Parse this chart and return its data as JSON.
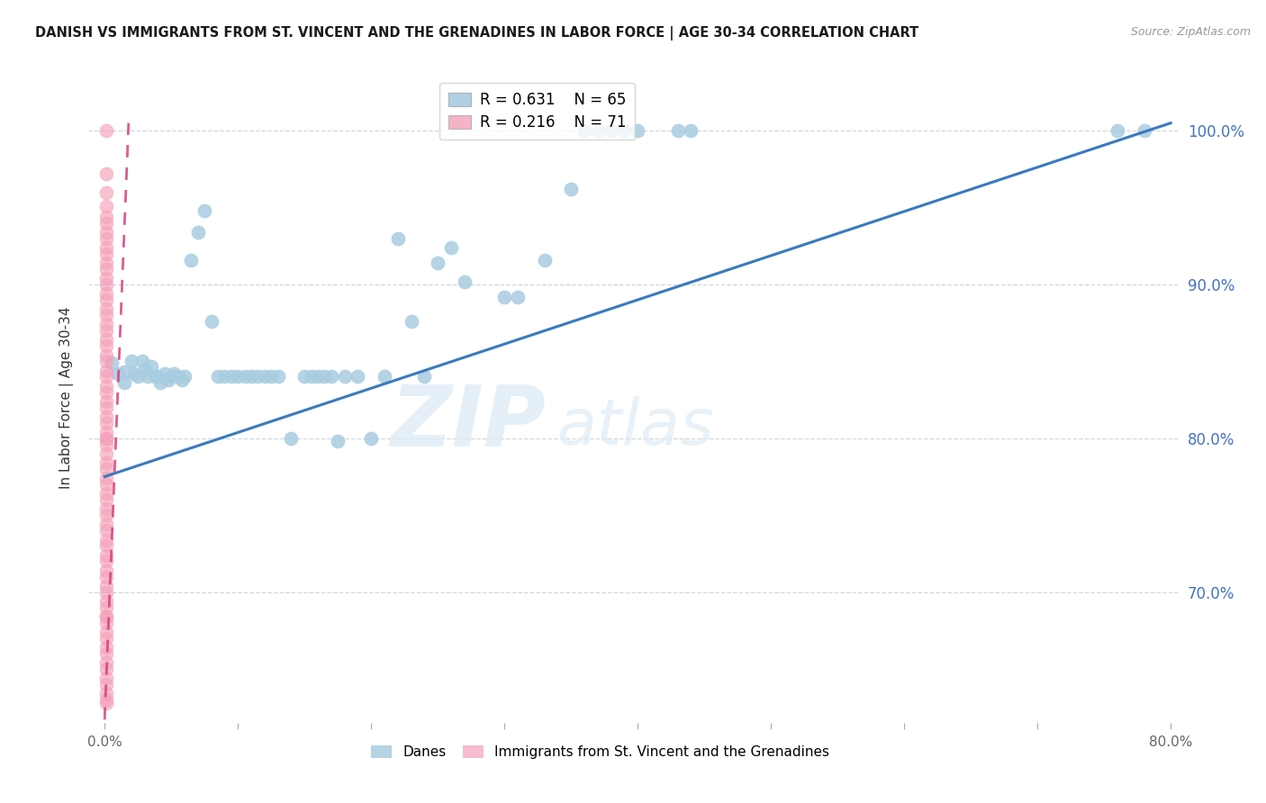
{
  "title": "DANISH VS IMMIGRANTS FROM ST. VINCENT AND THE GRENADINES IN LABOR FORCE | AGE 30-34 CORRELATION CHART",
  "source": "Source: ZipAtlas.com",
  "ylabel": "In Labor Force | Age 30-34",
  "xlim": [
    -0.012,
    0.805
  ],
  "ylim": [
    0.615,
    1.038
  ],
  "right_yticks": [
    0.7,
    0.8,
    0.9,
    1.0
  ],
  "right_yticklabels": [
    "70.0%",
    "80.0%",
    "90.0%",
    "100.0%"
  ],
  "xticks": [
    0.0,
    0.1,
    0.2,
    0.3,
    0.4,
    0.5,
    0.6,
    0.7,
    0.8
  ],
  "xticklabels": [
    "0.0%",
    "",
    "",
    "",
    "",
    "",
    "",
    "",
    "80.0%"
  ],
  "legend_blue_r": "R = 0.631",
  "legend_blue_n": "N = 65",
  "legend_pink_r": "R = 0.216",
  "legend_pink_n": "N = 71",
  "blue_dot_color": "#a8cce0",
  "pink_dot_color": "#f4a0b8",
  "trend_blue_color": "#3a7abf",
  "trend_pink_color": "#d44080",
  "grid_color": "#d0d8e0",
  "danes_x": [
    0.005,
    0.01,
    0.015,
    0.015,
    0.02,
    0.022,
    0.025,
    0.028,
    0.03,
    0.032,
    0.035,
    0.038,
    0.04,
    0.042,
    0.045,
    0.048,
    0.05,
    0.052,
    0.055,
    0.058,
    0.06,
    0.065,
    0.07,
    0.075,
    0.08,
    0.085,
    0.09,
    0.095,
    0.1,
    0.105,
    0.11,
    0.115,
    0.12,
    0.125,
    0.13,
    0.14,
    0.15,
    0.155,
    0.16,
    0.165,
    0.17,
    0.175,
    0.18,
    0.19,
    0.2,
    0.21,
    0.22,
    0.23,
    0.24,
    0.25,
    0.26,
    0.27,
    0.3,
    0.31,
    0.33,
    0.35,
    0.36,
    0.37,
    0.38,
    0.39,
    0.4,
    0.43,
    0.44,
    0.76,
    0.78
  ],
  "danes_y": [
    0.849,
    0.842,
    0.843,
    0.836,
    0.85,
    0.842,
    0.84,
    0.85,
    0.845,
    0.84,
    0.847,
    0.84,
    0.84,
    0.836,
    0.842,
    0.838,
    0.84,
    0.842,
    0.84,
    0.838,
    0.84,
    0.916,
    0.934,
    0.948,
    0.876,
    0.84,
    0.84,
    0.84,
    0.84,
    0.84,
    0.84,
    0.84,
    0.84,
    0.84,
    0.84,
    0.8,
    0.84,
    0.84,
    0.84,
    0.84,
    0.84,
    0.798,
    0.84,
    0.84,
    0.8,
    0.84,
    0.93,
    0.876,
    0.84,
    0.914,
    0.924,
    0.902,
    0.892,
    0.892,
    0.916,
    0.962,
    1.0,
    1.0,
    1.0,
    1.0,
    1.0,
    1.0,
    1.0,
    1.0,
    1.0
  ],
  "immigrants_x_vals": [
    0.001,
    0.001,
    0.001,
    0.001,
    0.001,
    0.001,
    0.001,
    0.001,
    0.001,
    0.001,
    0.001,
    0.001,
    0.001,
    0.001,
    0.001,
    0.001,
    0.001,
    0.001,
    0.001,
    0.001,
    0.001,
    0.001,
    0.001,
    0.001,
    0.001,
    0.001,
    0.001,
    0.001,
    0.001,
    0.001,
    0.001,
    0.001,
    0.001,
    0.001,
    0.001,
    0.001,
    0.001,
    0.001,
    0.001,
    0.001,
    0.001,
    0.001,
    0.001,
    0.001,
    0.001,
    0.001,
    0.001,
    0.001,
    0.001,
    0.001,
    0.001,
    0.001,
    0.001,
    0.001,
    0.001,
    0.001,
    0.001,
    0.001,
    0.001,
    0.001,
    0.001,
    0.001,
    0.001,
    0.001,
    0.001,
    0.001,
    0.001,
    0.001,
    0.001,
    0.001,
    0.001
  ],
  "immigrants_y_vals": [
    1.0,
    0.972,
    0.96,
    0.951,
    0.944,
    0.94,
    0.934,
    0.93,
    0.924,
    0.92,
    0.914,
    0.91,
    0.904,
    0.9,
    0.894,
    0.89,
    0.884,
    0.88,
    0.874,
    0.87,
    0.864,
    0.86,
    0.854,
    0.85,
    0.844,
    0.84,
    0.834,
    0.83,
    0.824,
    0.82,
    0.814,
    0.81,
    0.804,
    0.8,
    0.8,
    0.796,
    0.79,
    0.784,
    0.78,
    0.774,
    0.77,
    0.764,
    0.76,
    0.754,
    0.75,
    0.744,
    0.74,
    0.734,
    0.73,
    0.724,
    0.72,
    0.714,
    0.71,
    0.704,
    0.7,
    0.694,
    0.69,
    0.684,
    0.68,
    0.674,
    0.67,
    0.664,
    0.66,
    0.654,
    0.65,
    0.644,
    0.64,
    0.634,
    0.63,
    0.684,
    0.628
  ],
  "pink_trend_x0": 0.0,
  "pink_trend_y0": 0.617,
  "pink_trend_x1": 0.018,
  "pink_trend_y1": 1.005,
  "blue_trend_x0": 0.0,
  "blue_trend_y0": 0.775,
  "blue_trend_x1": 0.8,
  "blue_trend_y1": 1.005
}
